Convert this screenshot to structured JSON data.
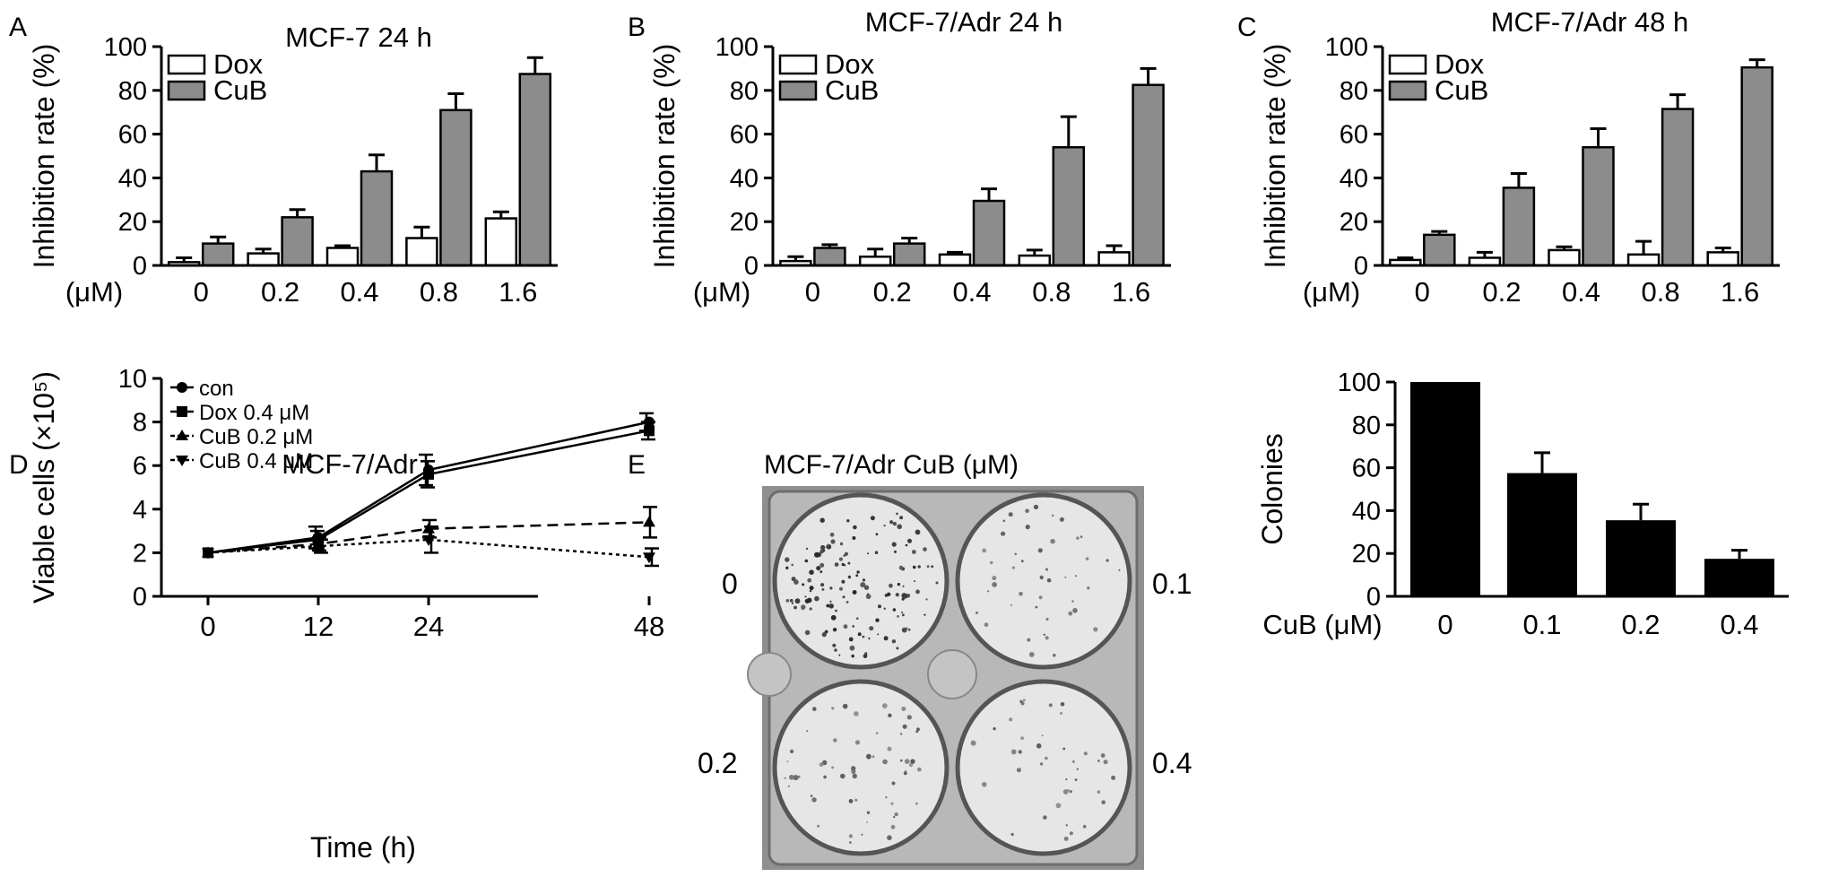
{
  "panel_letters": [
    "A",
    "B",
    "C",
    "D",
    "E"
  ],
  "photo": {
    "title": "MCF-7/Adr  CuB (μM)",
    "well_labels": [
      "0",
      "0.1",
      "0.2",
      "0.4"
    ]
  },
  "chart_data": [
    {
      "id": "A",
      "type": "bar",
      "title": "MCF-7  24 h",
      "xlabel": "",
      "ylabel": "Inhibition rate (%)",
      "unit_label": "(μM)",
      "categories": [
        "0",
        "0.2",
        "0.4",
        "0.8",
        "1.6"
      ],
      "ylim": [
        0,
        100
      ],
      "yticks": [
        0,
        20,
        40,
        60,
        80,
        100
      ],
      "legend_position": "top-left",
      "series": [
        {
          "name": "Dox",
          "color": "#ffffff",
          "values": [
            1.5,
            5.5,
            8,
            12.5,
            21.5
          ],
          "errors": [
            2,
            2,
            1,
            5,
            3
          ]
        },
        {
          "name": "CuB",
          "color": "#8c8c8c",
          "values": [
            10,
            22,
            43,
            71,
            87.5
          ],
          "errors": [
            3,
            3.5,
            7.5,
            7.5,
            7.5
          ]
        }
      ]
    },
    {
      "id": "B",
      "type": "bar",
      "title": "MCF-7/Adr  24 h",
      "xlabel": "",
      "ylabel": "Inhibition rate (%)",
      "unit_label": "(μM)",
      "categories": [
        "0",
        "0.2",
        "0.4",
        "0.8",
        "1.6"
      ],
      "ylim": [
        0,
        100
      ],
      "yticks": [
        0,
        20,
        40,
        60,
        80,
        100
      ],
      "legend_position": "top-left",
      "series": [
        {
          "name": "Dox",
          "color": "#ffffff",
          "values": [
            2,
            4,
            5,
            4.5,
            6
          ],
          "errors": [
            2,
            3.5,
            1,
            2.5,
            3
          ]
        },
        {
          "name": "CuB",
          "color": "#8c8c8c",
          "values": [
            8,
            10,
            29.5,
            54,
            82.5
          ],
          "errors": [
            1.5,
            2.5,
            5.5,
            14,
            7.5
          ]
        }
      ]
    },
    {
      "id": "C",
      "type": "bar",
      "title": "MCF-7/Adr  48 h",
      "xlabel": "",
      "ylabel": "Inhibition rate (%)",
      "unit_label": "(μM)",
      "categories": [
        "0",
        "0.2",
        "0.4",
        "0.8",
        "1.6"
      ],
      "ylim": [
        0,
        100
      ],
      "yticks": [
        0,
        20,
        40,
        60,
        80,
        100
      ],
      "legend_position": "top-left",
      "series": [
        {
          "name": "Dox",
          "color": "#ffffff",
          "values": [
            2.5,
            3.5,
            7,
            5,
            6
          ],
          "errors": [
            1,
            2.5,
            1.5,
            6,
            2
          ]
        },
        {
          "name": "CuB",
          "color": "#8c8c8c",
          "values": [
            14,
            35.5,
            54,
            71.5,
            90.5
          ],
          "errors": [
            1.5,
            6.5,
            8.5,
            6.5,
            3.5
          ]
        }
      ]
    },
    {
      "id": "D",
      "type": "line",
      "title": "MCF-7/Adr",
      "xlabel": "Time (h)",
      "ylabel": "Viable cells (×10⁵)",
      "x": [
        0,
        12,
        24,
        48
      ],
      "xticks": [
        "0",
        "12",
        "24",
        "48"
      ],
      "ylim": [
        0,
        10
      ],
      "yticks": [
        0,
        2,
        4,
        6,
        8,
        10
      ],
      "legend_position": "top-left",
      "series": [
        {
          "name": "con",
          "marker": "circle",
          "dash": "",
          "values": [
            2,
            2.7,
            5.8,
            8
          ],
          "errors": [
            0.1,
            0.5,
            0.7,
            0.4
          ]
        },
        {
          "name": "Dox 0.4 μM",
          "marker": "square",
          "dash": "",
          "values": [
            2,
            2.6,
            5.6,
            7.6
          ],
          "errors": [
            0.1,
            0.4,
            0.6,
            0.4
          ]
        },
        {
          "name": "CuB 0.2 μM",
          "marker": "triangle-up",
          "dash": "12 7",
          "values": [
            2,
            2.4,
            3.1,
            3.4
          ],
          "errors": [
            0.1,
            0.3,
            0.4,
            0.7
          ]
        },
        {
          "name": "CuB 0.4 μM",
          "marker": "triangle-down",
          "dash": "4 4",
          "values": [
            2,
            2.3,
            2.6,
            1.8
          ],
          "errors": [
            0.1,
            0.3,
            0.6,
            0.4
          ]
        }
      ]
    },
    {
      "id": "E",
      "type": "bar",
      "title": "",
      "xlabel": "",
      "ylabel": "Colonies",
      "unit_label": "CuB (μM)",
      "categories": [
        "0",
        "0.1",
        "0.2",
        "0.4"
      ],
      "ylim": [
        0,
        100
      ],
      "yticks": [
        0,
        20,
        40,
        60,
        80,
        100
      ],
      "series": [
        {
          "name": "",
          "color": "#000000",
          "values": [
            100,
            57.5,
            35.5,
            17.5
          ],
          "errors": [
            0,
            9.5,
            7.5,
            4
          ]
        }
      ]
    }
  ]
}
